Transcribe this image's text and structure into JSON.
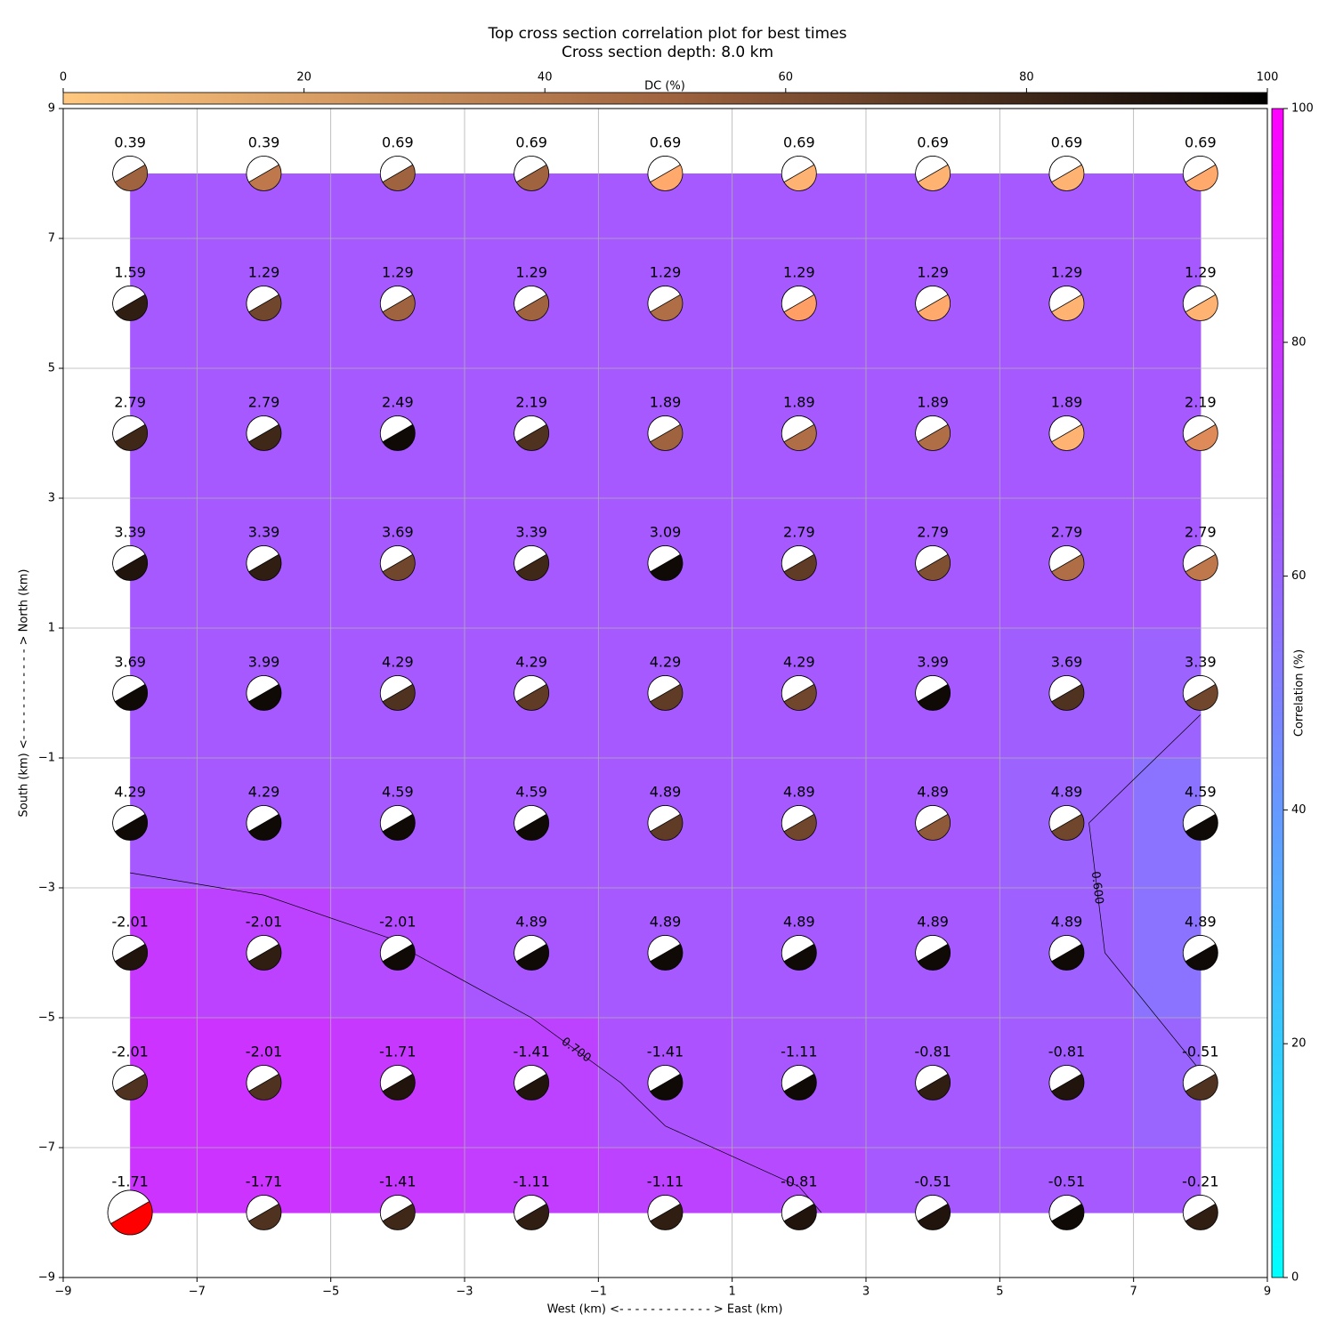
{
  "chart_data": {
    "type": "focal_grid",
    "title": "Top cross section correlation plot for best times",
    "subtitle": "Cross section depth: 8.0 km",
    "x_label": "West (km) <- - - - - - - - - - - - > East (km)",
    "y_label": "South (km) <- - - - - - - - - - - - > North (km)",
    "xlim": [
      -9,
      9
    ],
    "ylim": [
      -9,
      9
    ],
    "xticks": [
      {
        "value": -9,
        "label": "−9"
      },
      {
        "value": -7,
        "label": "−7"
      },
      {
        "value": -5,
        "label": "−5"
      },
      {
        "value": -3,
        "label": "−3"
      },
      {
        "value": -1,
        "label": "−1"
      },
      1,
      3,
      5,
      7,
      9
    ],
    "yticks": [
      {
        "value": -9,
        "label": "−9"
      },
      {
        "value": -7,
        "label": "−7"
      },
      {
        "value": -5,
        "label": "−5"
      },
      {
        "value": -3,
        "label": "−3"
      },
      {
        "value": -1,
        "label": "−1"
      },
      1,
      3,
      5,
      7,
      9
    ],
    "grid": true,
    "x": [
      -8,
      -6,
      -4,
      -2,
      0,
      2,
      4,
      6,
      8
    ],
    "y": [
      8,
      6,
      4,
      2,
      0,
      -2,
      -4,
      -6,
      -8
    ],
    "time_shift": [
      [
        0.39,
        0.39,
        0.69,
        0.69,
        0.69,
        0.69,
        0.69,
        0.69,
        0.69
      ],
      [
        1.59,
        1.29,
        1.29,
        1.29,
        1.29,
        1.29,
        1.29,
        1.29,
        1.29
      ],
      [
        2.79,
        2.79,
        2.49,
        2.19,
        1.89,
        1.89,
        1.89,
        1.89,
        2.19
      ],
      [
        3.39,
        3.39,
        3.69,
        3.39,
        3.09,
        2.79,
        2.79,
        2.79,
        2.79
      ],
      [
        3.69,
        3.99,
        4.29,
        4.29,
        4.29,
        4.29,
        3.99,
        3.69,
        3.39
      ],
      [
        4.29,
        4.29,
        4.59,
        4.59,
        4.89,
        4.89,
        4.89,
        4.89,
        4.59
      ],
      [
        -2.01,
        -2.01,
        -2.01,
        4.89,
        4.89,
        4.89,
        4.89,
        4.89,
        4.89
      ],
      [
        -2.01,
        -2.01,
        -1.71,
        -1.41,
        -1.41,
        -1.11,
        -0.81,
        -0.81,
        -0.51
      ],
      [
        -1.71,
        -1.71,
        -1.41,
        -1.11,
        -1.11,
        -0.81,
        -0.51,
        -0.51,
        -0.21
      ]
    ],
    "dc": [
      [
        50,
        40,
        50,
        50,
        15,
        10,
        10,
        10,
        15
      ],
      [
        85,
        65,
        50,
        50,
        45,
        20,
        15,
        10,
        10
      ],
      [
        80,
        80,
        95,
        75,
        50,
        45,
        45,
        10,
        30
      ],
      [
        90,
        85,
        65,
        80,
        95,
        70,
        60,
        45,
        40
      ],
      [
        95,
        95,
        75,
        70,
        70,
        65,
        95,
        75,
        65
      ],
      [
        95,
        95,
        95,
        95,
        70,
        65,
        55,
        65,
        95
      ],
      [
        90,
        85,
        95,
        95,
        95,
        95,
        95,
        95,
        95
      ],
      [
        75,
        75,
        90,
        90,
        95,
        95,
        85,
        90,
        75
      ],
      [
        80,
        75,
        80,
        85,
        85,
        90,
        90,
        95,
        85
      ]
    ],
    "correlation": [
      [
        65,
        65,
        65,
        65,
        65,
        65,
        65,
        65,
        65
      ],
      [
        65,
        65,
        65,
        65,
        65,
        65,
        65,
        65,
        65
      ],
      [
        65,
        65,
        65,
        65,
        65,
        65,
        65,
        65,
        65
      ],
      [
        65,
        65,
        65,
        65,
        65,
        65,
        65,
        65,
        65
      ],
      [
        65,
        65,
        65,
        65,
        65,
        65,
        65,
        63,
        61
      ],
      [
        65,
        65,
        65,
        65,
        65,
        65,
        65,
        61,
        55
      ],
      [
        78,
        74,
        70.5,
        66,
        65,
        65,
        65,
        62,
        55
      ],
      [
        80,
        80,
        78,
        74,
        68,
        66,
        65,
        64,
        60.5
      ],
      [
        80,
        80,
        78,
        76,
        74,
        71,
        65,
        65,
        65
      ]
    ],
    "contours": [
      {
        "value": 70,
        "label": "0.700"
      },
      {
        "value": 60,
        "label": "0.600"
      }
    ],
    "dc_colorbar": {
      "label": "DC (%)",
      "lim": [
        0,
        100
      ],
      "ticks": [
        0,
        20,
        40,
        60,
        80,
        100
      ]
    },
    "correlation_colorbar": {
      "label": "Correlation (%)",
      "lim": [
        0,
        100
      ],
      "ticks": [
        0,
        20,
        40,
        60,
        80,
        100
      ]
    },
    "highlight": {
      "row": 8,
      "col": 0,
      "color": "#ff0000"
    }
  }
}
